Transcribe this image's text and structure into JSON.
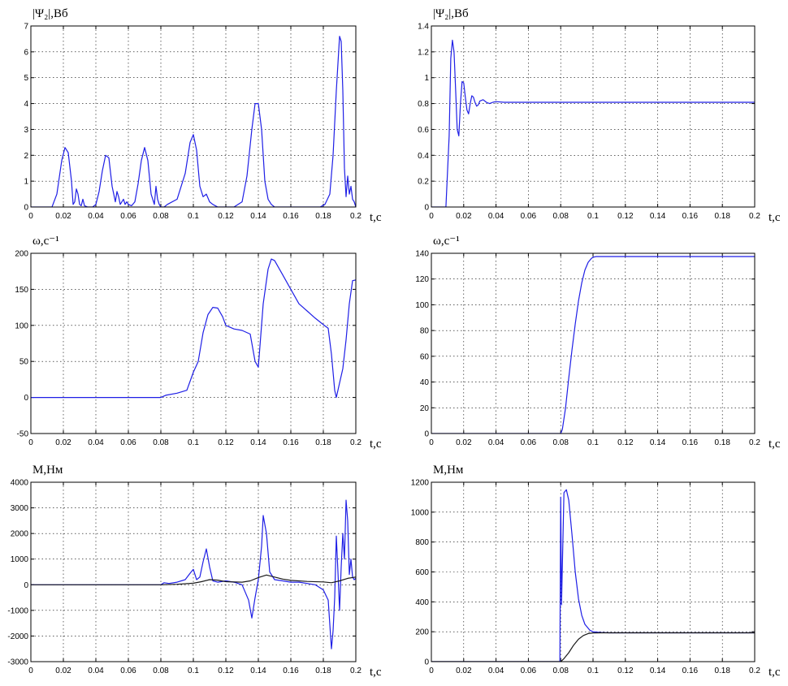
{
  "colors": {
    "blue": "#1f1fe6",
    "black": "#1a1a1a"
  },
  "chart_data": [
    {
      "type": "line",
      "ylabel": "|Ψ₂|,Вб",
      "xlabel": "t,c",
      "xlim": [
        0,
        0.2
      ],
      "ylim": [
        0,
        7
      ],
      "xticks": [
        "0",
        "0.02",
        "0.04",
        "0.06",
        "0.08",
        "0.1",
        "0.12",
        "0.14",
        "0.16",
        "0.18",
        "0.2"
      ],
      "yticks": [
        "0",
        "1",
        "2",
        "3",
        "4",
        "5",
        "6",
        "7"
      ],
      "grid": true,
      "series": [
        {
          "color": "blue",
          "x": [
            0,
            0.013,
            0.016,
            0.019,
            0.021,
            0.023,
            0.025,
            0.026,
            0.027,
            0.028,
            0.029,
            0.03,
            0.031,
            0.032,
            0.033,
            0.035,
            0.038,
            0.04,
            0.042,
            0.044,
            0.046,
            0.048,
            0.05,
            0.052,
            0.053,
            0.054,
            0.055,
            0.056,
            0.057,
            0.058,
            0.059,
            0.06,
            0.062,
            0.064,
            0.066,
            0.068,
            0.07,
            0.072,
            0.074,
            0.076,
            0.077,
            0.078,
            0.079,
            0.08,
            0.081,
            0.082,
            0.084,
            0.09,
            0.095,
            0.098,
            0.1,
            0.102,
            0.104,
            0.106,
            0.108,
            0.11,
            0.112,
            0.115,
            0.12,
            0.125,
            0.13,
            0.133,
            0.136,
            0.138,
            0.14,
            0.142,
            0.144,
            0.146,
            0.148,
            0.15,
            0.155,
            0.16,
            0.165,
            0.17,
            0.175,
            0.178,
            0.181,
            0.184,
            0.186,
            0.188,
            0.19,
            0.191,
            0.192,
            0.193,
            0.194,
            0.195,
            0.196,
            0.197,
            0.198,
            0.199,
            0.2
          ],
          "y": [
            0,
            0,
            0.5,
            1.8,
            2.3,
            2.1,
            1.0,
            0.1,
            0.2,
            0.7,
            0.5,
            0.1,
            0.05,
            0.3,
            0.05,
            0,
            0,
            0.1,
            0.6,
            1.4,
            2.0,
            1.9,
            0.8,
            0.2,
            0.6,
            0.4,
            0.1,
            0.2,
            0.3,
            0.1,
            0.2,
            0.1,
            0.05,
            0.2,
            0.9,
            1.8,
            2.3,
            1.8,
            0.5,
            0.1,
            0.8,
            0.3,
            0.1,
            0,
            0,
            0,
            0.1,
            0.3,
            1.3,
            2.5,
            2.8,
            2.2,
            0.8,
            0.4,
            0.5,
            0.2,
            0.1,
            0,
            0,
            0,
            0.2,
            1.2,
            3.0,
            4.0,
            4.0,
            3.0,
            1.0,
            0.3,
            0.1,
            0,
            0,
            0,
            0,
            0,
            0,
            0,
            0.1,
            0.5,
            2.0,
            4.5,
            6.6,
            6.4,
            4.5,
            1.5,
            0.4,
            1.2,
            0.5,
            0.8,
            0.3,
            0.2,
            0
          ]
        }
      ]
    },
    {
      "type": "line",
      "ylabel": "|Ψ₂|,Вб",
      "xlabel": "t,c",
      "xlim": [
        0,
        0.2
      ],
      "ylim": [
        0,
        1.4
      ],
      "xticks": [
        "0",
        "0.02",
        "0.04",
        "0.06",
        "0.08",
        "0.1",
        "0.12",
        "0.14",
        "0.16",
        "0.18",
        "0.2"
      ],
      "yticks": [
        "0",
        "0.2",
        "0.4",
        "0.6",
        "0.8",
        "1",
        "1.2",
        "1.4"
      ],
      "grid": true,
      "series": [
        {
          "color": "blue",
          "x": [
            0,
            0.009,
            0.011,
            0.012,
            0.013,
            0.014,
            0.015,
            0.016,
            0.017,
            0.018,
            0.019,
            0.02,
            0.021,
            0.022,
            0.023,
            0.024,
            0.025,
            0.026,
            0.027,
            0.028,
            0.029,
            0.03,
            0.032,
            0.034,
            0.036,
            0.038,
            0.04,
            0.045,
            0.05,
            0.06,
            0.1,
            0.15,
            0.2
          ],
          "y": [
            0,
            0,
            0.55,
            1.15,
            1.29,
            1.2,
            0.9,
            0.6,
            0.55,
            0.8,
            0.97,
            0.96,
            0.85,
            0.75,
            0.72,
            0.8,
            0.86,
            0.85,
            0.81,
            0.78,
            0.79,
            0.82,
            0.83,
            0.81,
            0.8,
            0.81,
            0.815,
            0.81,
            0.81,
            0.81,
            0.81,
            0.81,
            0.81
          ]
        }
      ]
    },
    {
      "type": "line",
      "ylabel": "ω,с⁻¹",
      "xlabel": "t,c",
      "xlim": [
        0,
        0.2
      ],
      "ylim": [
        -50,
        200
      ],
      "xticks": [
        "0",
        "0.02",
        "0.04",
        "0.06",
        "0.08",
        "0.1",
        "0.12",
        "0.14",
        "0.16",
        "0.18",
        "0.2"
      ],
      "yticks": [
        "-50",
        "0",
        "50",
        "100",
        "150",
        "200"
      ],
      "grid": true,
      "series": [
        {
          "color": "blue",
          "x": [
            0,
            0.08,
            0.083,
            0.09,
            0.096,
            0.1,
            0.103,
            0.106,
            0.109,
            0.112,
            0.115,
            0.118,
            0.12,
            0.125,
            0.13,
            0.135,
            0.138,
            0.14,
            0.143,
            0.146,
            0.148,
            0.15,
            0.155,
            0.16,
            0.165,
            0.17,
            0.175,
            0.18,
            0.183,
            0.185,
            0.187,
            0.188,
            0.19,
            0.192,
            0.194,
            0.196,
            0.198,
            0.2
          ],
          "y": [
            0,
            0,
            3,
            6,
            10,
            35,
            50,
            90,
            115,
            125,
            124,
            112,
            100,
            95,
            93,
            88,
            50,
            42,
            130,
            178,
            192,
            190,
            170,
            150,
            130,
            120,
            110,
            101,
            96,
            60,
            10,
            0,
            20,
            40,
            80,
            130,
            162,
            163
          ]
        }
      ]
    },
    {
      "type": "line",
      "ylabel": "ω,с⁻¹",
      "xlabel": "t,c",
      "xlim": [
        0,
        0.2
      ],
      "ylim": [
        0,
        140
      ],
      "xticks": [
        "0",
        "0.02",
        "0.04",
        "0.06",
        "0.08",
        "0.1",
        "0.12",
        "0.14",
        "0.16",
        "0.18",
        "0.2"
      ],
      "yticks": [
        "0",
        "20",
        "40",
        "60",
        "80",
        "100",
        "120",
        "140"
      ],
      "grid": true,
      "series": [
        {
          "color": "blue",
          "x": [
            0,
            0.08,
            0.081,
            0.083,
            0.085,
            0.087,
            0.089,
            0.091,
            0.093,
            0.095,
            0.097,
            0.099,
            0.1,
            0.102,
            0.105,
            0.11,
            0.15,
            0.2
          ],
          "y": [
            0,
            0,
            3,
            20,
            43,
            65,
            85,
            103,
            117,
            127,
            133,
            136,
            137,
            137.5,
            137.5,
            137.5,
            137.5,
            137.5
          ]
        }
      ]
    },
    {
      "type": "line",
      "ylabel": "M,Нм",
      "xlabel": "t,c",
      "xlim": [
        0,
        0.2
      ],
      "ylim": [
        -3000,
        4000
      ],
      "xticks": [
        "0",
        "0.02",
        "0.04",
        "0.06",
        "0.08",
        "0.1",
        "0.12",
        "0.14",
        "0.16",
        "0.18",
        "0.2"
      ],
      "yticks": [
        "-3000",
        "-2000",
        "-1000",
        "0",
        "1000",
        "2000",
        "3000",
        "4000"
      ],
      "grid": true,
      "series": [
        {
          "color": "blue",
          "x": [
            0,
            0.08,
            0.082,
            0.085,
            0.09,
            0.095,
            0.098,
            0.1,
            0.102,
            0.104,
            0.106,
            0.108,
            0.11,
            0.112,
            0.115,
            0.12,
            0.125,
            0.13,
            0.134,
            0.136,
            0.138,
            0.14,
            0.142,
            0.143,
            0.145,
            0.147,
            0.15,
            0.155,
            0.16,
            0.165,
            0.17,
            0.175,
            0.18,
            0.183,
            0.185,
            0.186,
            0.187,
            0.188,
            0.189,
            0.19,
            0.191,
            0.192,
            0.193,
            0.194,
            0.195,
            0.196,
            0.197,
            0.198,
            0.199,
            0.2
          ],
          "y": [
            0,
            0,
            80,
            50,
            100,
            200,
            450,
            600,
            200,
            300,
            900,
            1400,
            700,
            150,
            100,
            150,
            100,
            0,
            -600,
            -1300,
            -500,
            200,
            1500,
            2700,
            2000,
            500,
            200,
            150,
            100,
            100,
            50,
            0,
            -200,
            -600,
            -2500,
            -1800,
            -500,
            1900,
            500,
            -1000,
            700,
            2000,
            1000,
            3300,
            2500,
            400,
            1000,
            300,
            200,
            250
          ]
        },
        {
          "color": "black",
          "x": [
            0,
            0.08,
            0.09,
            0.1,
            0.105,
            0.11,
            0.115,
            0.12,
            0.13,
            0.135,
            0.14,
            0.145,
            0.15,
            0.155,
            0.16,
            0.17,
            0.18,
            0.185,
            0.19,
            0.195,
            0.2
          ],
          "y": [
            0,
            0,
            20,
            60,
            120,
            200,
            180,
            120,
            100,
            150,
            280,
            380,
            300,
            220,
            170,
            130,
            110,
            80,
            150,
            250,
            300
          ]
        }
      ]
    },
    {
      "type": "line",
      "ylabel": "M,Нм",
      "xlabel": "t,c",
      "xlim": [
        0,
        0.2
      ],
      "ylim": [
        0,
        1200
      ],
      "xticks": [
        "0",
        "0.02",
        "0.04",
        "0.06",
        "0.08",
        "0.1",
        "0.12",
        "0.14",
        "0.16",
        "0.18",
        "0.2"
      ],
      "yticks": [
        "0",
        "200",
        "400",
        "600",
        "800",
        "1000",
        "1200"
      ],
      "grid": true,
      "series": [
        {
          "color": "blue",
          "x": [
            0,
            0.0795,
            0.08,
            0.0805,
            0.082,
            0.0835,
            0.085,
            0.087,
            0.089,
            0.091,
            0.093,
            0.095,
            0.098,
            0.1,
            0.105,
            0.11,
            0.15,
            0.2
          ],
          "y": [
            0,
            0,
            1100,
            380,
            1130,
            1150,
            1080,
            850,
            600,
            420,
            310,
            250,
            210,
            200,
            195,
            193,
            193,
            193
          ]
        },
        {
          "color": "black",
          "x": [
            0,
            0.08,
            0.082,
            0.085,
            0.088,
            0.091,
            0.094,
            0.097,
            0.1,
            0.105,
            0.11,
            0.15,
            0.2
          ],
          "y": [
            0,
            0,
            20,
            60,
            110,
            150,
            175,
            188,
            192,
            193,
            193,
            193,
            193
          ]
        }
      ]
    }
  ]
}
